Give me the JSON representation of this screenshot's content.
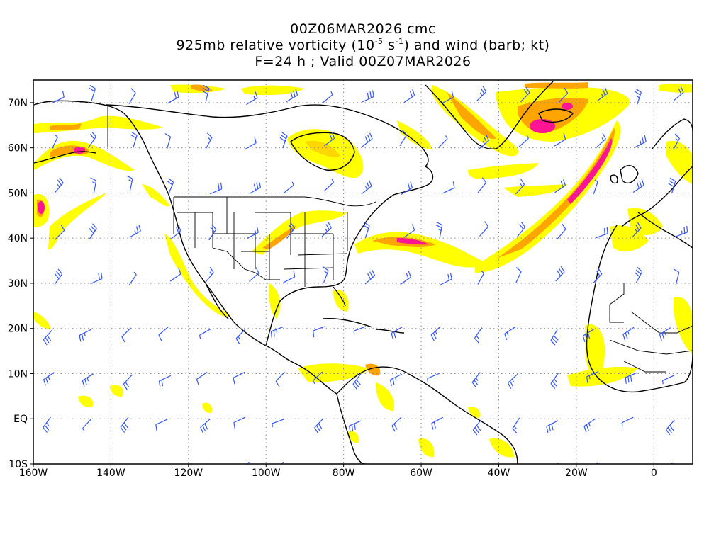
{
  "title": {
    "line1": "00Z06MAR2026 cmc",
    "line2_pre": "925mb relative vorticity (10",
    "line2_exp1": "-5",
    "line2_mid": " s",
    "line2_exp2": "-1",
    "line2_post": ") and wind (barb; kt)",
    "line3": "F=24 h ; Valid 00Z07MAR2026"
  },
  "map": {
    "projection": "cylindrical equidistant",
    "lon_range": [
      -160,
      10
    ],
    "lat_range": [
      -10,
      75
    ],
    "gridlines": "dotted",
    "colors": {
      "vort_low": "#ffff00",
      "vort_mid": "#ffd700",
      "vort_high": "#ffa500",
      "vort_max": "#ff1493",
      "barbs": "#3355ff",
      "coast": "#000000"
    }
  },
  "axes": {
    "lat_ticks": [
      {
        "lat": 70,
        "label": "70N"
      },
      {
        "lat": 60,
        "label": "60N"
      },
      {
        "lat": 50,
        "label": "50N"
      },
      {
        "lat": 40,
        "label": "40N"
      },
      {
        "lat": 30,
        "label": "30N"
      },
      {
        "lat": 20,
        "label": "20N"
      },
      {
        "lat": 10,
        "label": "10N"
      },
      {
        "lat": 0,
        "label": "EQ"
      },
      {
        "lat": -10,
        "label": "10S"
      }
    ],
    "lon_ticks": [
      {
        "lon": -160,
        "label": "160W"
      },
      {
        "lon": -140,
        "label": "140W"
      },
      {
        "lon": -120,
        "label": "120W"
      },
      {
        "lon": -100,
        "label": "100W"
      },
      {
        "lon": -80,
        "label": "80W"
      },
      {
        "lon": -60,
        "label": "60W"
      },
      {
        "lon": -40,
        "label": "40W"
      },
      {
        "lon": -20,
        "label": "20W"
      },
      {
        "lon": 0,
        "label": "0"
      }
    ]
  }
}
